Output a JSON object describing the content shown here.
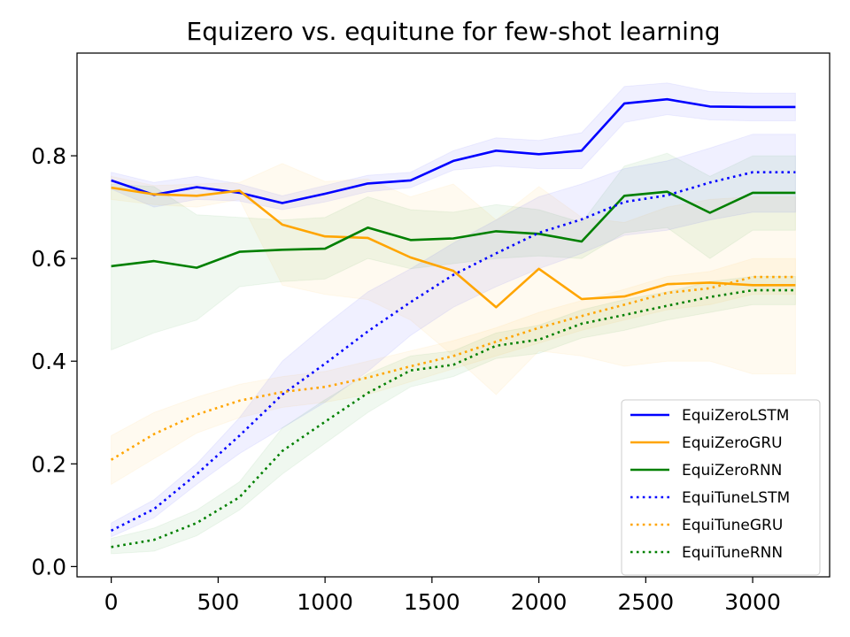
{
  "chart_data": {
    "type": "line",
    "title": "Equizero vs. equitune for few-shot learning",
    "xlabel": "",
    "ylabel": "",
    "xlim": [
      -160,
      3360
    ],
    "ylim": [
      -0.02,
      1.0
    ],
    "xticks": [
      0,
      500,
      1000,
      1500,
      2000,
      2500,
      3000
    ],
    "yticks": [
      0.0,
      0.2,
      0.4,
      0.6,
      0.8
    ],
    "xtick_labels": [
      "0",
      "500",
      "1000",
      "1500",
      "2000",
      "2500",
      "3000"
    ],
    "ytick_labels": [
      "0.0",
      "0.2",
      "0.4",
      "0.6",
      "0.8"
    ],
    "grid": false,
    "legend_position": "lower-right",
    "x": [
      0,
      200,
      400,
      600,
      800,
      1000,
      1200,
      1400,
      1600,
      1800,
      2000,
      2200,
      2400,
      2600,
      2800,
      3000,
      3200
    ],
    "series": [
      {
        "name": "EquiZeroLSTM",
        "color": "#0000ff",
        "style": "solid",
        "values": [
          0.752,
          0.724,
          0.739,
          0.728,
          0.708,
          0.726,
          0.746,
          0.752,
          0.79,
          0.81,
          0.803,
          0.81,
          0.902,
          0.91,
          0.896,
          0.895,
          0.895
        ],
        "lower": [
          0.735,
          0.7,
          0.715,
          0.712,
          0.695,
          0.71,
          0.73,
          0.738,
          0.772,
          0.78,
          0.775,
          0.775,
          0.865,
          0.88,
          0.87,
          0.868,
          0.868
        ],
        "upper": [
          0.768,
          0.748,
          0.76,
          0.745,
          0.722,
          0.742,
          0.762,
          0.768,
          0.81,
          0.835,
          0.83,
          0.845,
          0.935,
          0.942,
          0.925,
          0.922,
          0.922
        ]
      },
      {
        "name": "EquiZeroGRU",
        "color": "#ffa500",
        "style": "solid",
        "values": [
          0.738,
          0.725,
          0.722,
          0.732,
          0.666,
          0.643,
          0.64,
          0.602,
          0.576,
          0.505,
          0.58,
          0.521,
          0.526,
          0.55,
          0.553,
          0.548,
          0.548
        ],
        "lower": [
          0.715,
          0.705,
          0.7,
          0.715,
          0.548,
          0.53,
          0.52,
          0.48,
          0.41,
          0.335,
          0.42,
          0.41,
          0.39,
          0.4,
          0.4,
          0.375,
          0.375
        ],
        "upper": [
          0.76,
          0.742,
          0.745,
          0.748,
          0.785,
          0.75,
          0.755,
          0.72,
          0.745,
          0.675,
          0.74,
          0.68,
          0.67,
          0.7,
          0.715,
          0.72,
          0.72
        ]
      },
      {
        "name": "EquiZeroRNN",
        "color": "#008000",
        "style": "solid",
        "values": [
          0.585,
          0.595,
          0.582,
          0.613,
          0.617,
          0.619,
          0.66,
          0.636,
          0.639,
          0.653,
          0.648,
          0.633,
          0.722,
          0.73,
          0.689,
          0.728,
          0.728
        ],
        "lower": [
          0.422,
          0.455,
          0.48,
          0.545,
          0.555,
          0.56,
          0.6,
          0.58,
          0.59,
          0.6,
          0.605,
          0.6,
          0.65,
          0.66,
          0.6,
          0.655,
          0.655
        ],
        "upper": [
          0.745,
          0.74,
          0.685,
          0.68,
          0.675,
          0.68,
          0.72,
          0.695,
          0.69,
          0.705,
          0.695,
          0.67,
          0.78,
          0.805,
          0.76,
          0.8,
          0.8
        ]
      },
      {
        "name": "EquiTuneLSTM",
        "color": "#0000ff",
        "style": "dotted",
        "values": [
          0.07,
          0.112,
          0.18,
          0.255,
          0.335,
          0.395,
          0.458,
          0.515,
          0.568,
          0.61,
          0.65,
          0.676,
          0.71,
          0.723,
          0.748,
          0.768,
          0.768
        ],
        "lower": [
          0.058,
          0.095,
          0.16,
          0.22,
          0.27,
          0.32,
          0.38,
          0.45,
          0.505,
          0.545,
          0.58,
          0.61,
          0.645,
          0.655,
          0.675,
          0.69,
          0.69
        ],
        "upper": [
          0.085,
          0.13,
          0.2,
          0.29,
          0.4,
          0.47,
          0.535,
          0.58,
          0.63,
          0.675,
          0.72,
          0.745,
          0.775,
          0.79,
          0.815,
          0.842,
          0.842
        ]
      },
      {
        "name": "EquiTuneGRU",
        "color": "#ffa500",
        "style": "dotted",
        "values": [
          0.208,
          0.258,
          0.296,
          0.323,
          0.34,
          0.35,
          0.368,
          0.39,
          0.41,
          0.438,
          0.465,
          0.488,
          0.51,
          0.533,
          0.542,
          0.564,
          0.564
        ],
        "lower": [
          0.16,
          0.21,
          0.26,
          0.29,
          0.31,
          0.32,
          0.335,
          0.36,
          0.385,
          0.41,
          0.435,
          0.46,
          0.48,
          0.5,
          0.51,
          0.53,
          0.53
        ],
        "upper": [
          0.255,
          0.3,
          0.33,
          0.355,
          0.37,
          0.38,
          0.4,
          0.42,
          0.44,
          0.465,
          0.495,
          0.518,
          0.54,
          0.565,
          0.575,
          0.6,
          0.6
        ]
      },
      {
        "name": "EquiTuneRNN",
        "color": "#008000",
        "style": "dotted",
        "values": [
          0.038,
          0.052,
          0.085,
          0.135,
          0.225,
          0.282,
          0.338,
          0.382,
          0.393,
          0.43,
          0.442,
          0.473,
          0.49,
          0.508,
          0.525,
          0.538,
          0.538
        ],
        "lower": [
          0.025,
          0.03,
          0.06,
          0.11,
          0.18,
          0.24,
          0.3,
          0.35,
          0.37,
          0.405,
          0.415,
          0.445,
          0.46,
          0.48,
          0.495,
          0.51,
          0.51
        ],
        "upper": [
          0.055,
          0.075,
          0.11,
          0.165,
          0.27,
          0.325,
          0.375,
          0.41,
          0.42,
          0.455,
          0.47,
          0.5,
          0.52,
          0.535,
          0.555,
          0.565,
          0.565
        ]
      }
    ]
  }
}
